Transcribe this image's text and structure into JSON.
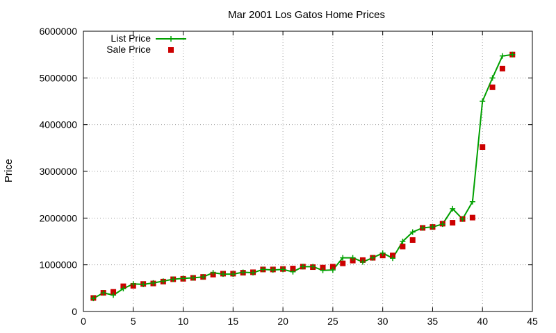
{
  "chart_data": {
    "type": "line",
    "title": "Mar 2001 Los Gatos Home Prices",
    "xlabel": "",
    "ylabel": "Price",
    "xlim": [
      0,
      45
    ],
    "ylim": [
      0,
      6000000
    ],
    "x_ticks": [
      0,
      5,
      10,
      15,
      20,
      25,
      30,
      35,
      40,
      45
    ],
    "y_ticks": [
      0,
      1000000,
      2000000,
      3000000,
      4000000,
      5000000,
      6000000
    ],
    "y_tick_labels": [
      "0",
      "1000000",
      "2000000",
      "3000000",
      "4000000",
      "5000000",
      "6000000"
    ],
    "grid": true,
    "legend_position": "top-left",
    "colors": {
      "list": "#00a000",
      "sale": "#cc0000"
    },
    "x": [
      1,
      2,
      3,
      4,
      5,
      6,
      7,
      8,
      9,
      10,
      11,
      12,
      13,
      14,
      15,
      16,
      17,
      18,
      19,
      20,
      21,
      22,
      23,
      24,
      25,
      26,
      27,
      28,
      29,
      30,
      31,
      32,
      33,
      34,
      35,
      36,
      37,
      38,
      39,
      40,
      41,
      42,
      43
    ],
    "series": [
      {
        "name": "List Price",
        "style": "lines+points",
        "values": [
          280000,
          400000,
          350000,
          490000,
          590000,
          580000,
          610000,
          650000,
          690000,
          710000,
          720000,
          740000,
          830000,
          800000,
          800000,
          840000,
          830000,
          900000,
          890000,
          900000,
          850000,
          960000,
          960000,
          880000,
          890000,
          1150000,
          1150000,
          1060000,
          1150000,
          1250000,
          1140000,
          1500000,
          1700000,
          1790000,
          1810000,
          1870000,
          2200000,
          1980000,
          2350000,
          4500000,
          5000000,
          5470000,
          5500000
        ]
      },
      {
        "name": "Sale Price",
        "style": "points",
        "values": [
          290000,
          400000,
          420000,
          540000,
          550000,
          590000,
          600000,
          640000,
          690000,
          700000,
          720000,
          740000,
          790000,
          810000,
          810000,
          830000,
          840000,
          900000,
          900000,
          910000,
          920000,
          960000,
          950000,
          940000,
          960000,
          1030000,
          1090000,
          1100000,
          1150000,
          1200000,
          1200000,
          1390000,
          1530000,
          1790000,
          1810000,
          1880000,
          1900000,
          1980000,
          2010000,
          3520000,
          4800000,
          5200000,
          5500000
        ]
      }
    ]
  }
}
